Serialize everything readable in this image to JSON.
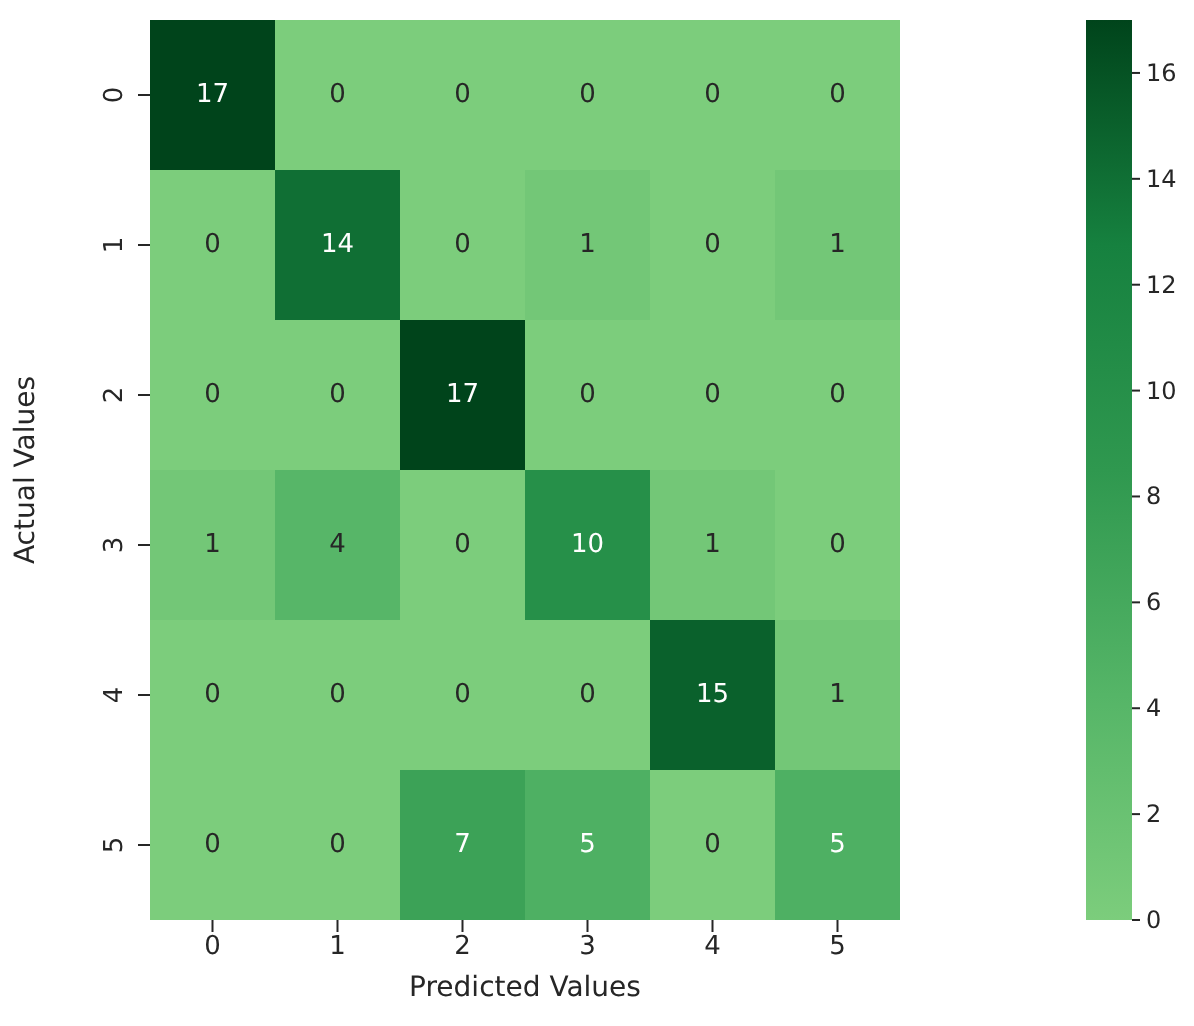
{
  "chart_data": {
    "type": "heatmap",
    "xlabel": "Predicted Values",
    "ylabel": "Actual Values",
    "categories": [
      "0",
      "1",
      "2",
      "3",
      "4",
      "5"
    ],
    "y_categories": [
      "0",
      "1",
      "2",
      "3",
      "4",
      "5"
    ],
    "cells": [
      [
        17,
        0,
        0,
        0,
        0,
        0
      ],
      [
        0,
        14,
        0,
        1,
        0,
        1
      ],
      [
        0,
        0,
        17,
        0,
        0,
        0
      ],
      [
        1,
        4,
        0,
        10,
        1,
        0
      ],
      [
        0,
        0,
        0,
        0,
        15,
        1
      ],
      [
        0,
        0,
        7,
        5,
        0,
        5
      ]
    ],
    "clim": [
      0,
      17
    ],
    "cticks": [
      0,
      2,
      4,
      6,
      8,
      10,
      12,
      14,
      16
    ],
    "colors": [
      "#7ccd7c",
      "#55b567",
      "#2f984f",
      "#16813f",
      "#00441b"
    ],
    "data_labels": true
  }
}
